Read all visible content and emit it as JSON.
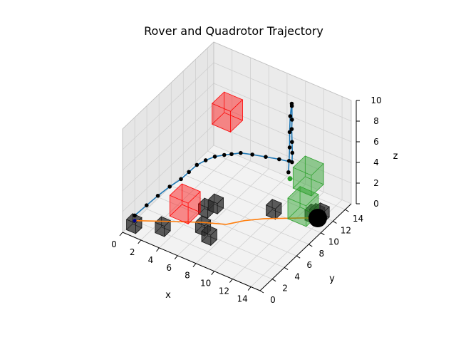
{
  "chart_data": {
    "type": "scatter3d",
    "title": "Rover and Quadrotor Trajectory",
    "xlabel": "x",
    "ylabel": "y",
    "zlabel": "z",
    "xlim": [
      0,
      15
    ],
    "ylim": [
      0,
      15
    ],
    "zlim": [
      0,
      10
    ],
    "xticks": [
      "0",
      "2",
      "4",
      "6",
      "8",
      "10",
      "12",
      "14"
    ],
    "yticks": [
      "0",
      "2",
      "4",
      "6",
      "8",
      "10",
      "12",
      "14"
    ],
    "zticks": [
      "0",
      "2",
      "4",
      "6",
      "8",
      "10"
    ],
    "grid": true,
    "colors": {
      "quadrotor_path": "#1f77b4",
      "rover_path": "#ff7f0e",
      "waypoint": "#000000",
      "goal": "#2ca02c",
      "obstacle_air": "#ff0000",
      "goal_region": "#2ca02c",
      "ground_obstacle": "#333333"
    },
    "quadrotor_trajectory": [
      [
        0,
        2,
        0.5
      ],
      [
        0.5,
        3.2,
        1.0
      ],
      [
        1.0,
        4.3,
        1.5
      ],
      [
        1.5,
        5.5,
        1.9
      ],
      [
        2.0,
        6.6,
        2.2
      ],
      [
        2.2,
        7.6,
        2.4
      ],
      [
        2.4,
        8.6,
        2.6
      ],
      [
        2.7,
        9.6,
        2.6
      ],
      [
        3.1,
        10.5,
        2.6
      ],
      [
        3.6,
        11.3,
        2.5
      ],
      [
        4.0,
        11.9,
        2.4
      ],
      [
        4.6,
        12.5,
        2.4
      ],
      [
        5.6,
        12.9,
        2.4
      ],
      [
        6.8,
        13.3,
        2.4
      ],
      [
        8.0,
        13.7,
        2.4
      ],
      [
        9.2,
        14.0,
        2.4
      ],
      [
        9.3,
        13.9,
        3.4
      ],
      [
        9.4,
        13.7,
        4.6
      ],
      [
        9.5,
        13.5,
        6.0
      ],
      [
        9.6,
        13.4,
        7.0
      ],
      [
        9.65,
        13.3,
        8.4
      ],
      [
        9.7,
        13.2,
        8.7
      ],
      [
        10.0,
        12.5,
        8.0
      ],
      [
        10.4,
        11.8,
        7.0
      ],
      [
        10.8,
        11.2,
        6.0
      ],
      [
        11.0,
        10.8,
        5.0
      ],
      [
        11.2,
        10.4,
        4.2
      ]
    ],
    "quadrotor_goal": [
      11.5,
      10.2,
      3.8
    ],
    "rover_trajectory": [
      [
        0,
        2,
        0
      ],
      [
        1.6,
        3.0,
        0
      ],
      [
        3.2,
        4.0,
        0
      ],
      [
        5.2,
        5.2,
        0
      ],
      [
        7.2,
        6.2,
        0
      ],
      [
        8.3,
        7.6,
        0
      ],
      [
        9.6,
        8.8,
        0
      ],
      [
        11.0,
        9.8,
        0
      ],
      [
        12.4,
        10.8,
        0
      ],
      [
        13.6,
        11.6,
        0
      ],
      [
        14.2,
        12.0,
        0
      ]
    ],
    "rover_goal": [
      13.6,
      11.6,
      0
    ],
    "air_obstacles": [
      {
        "center": [
          4.1,
          4.1,
          2.0
        ],
        "size": 2
      },
      {
        "center": [
          4.6,
          10.3,
          7.6
        ],
        "size": 2
      }
    ],
    "goal_regions": [
      {
        "center": [
          12.5,
          11.7,
          3.6
        ],
        "size": 2
      },
      {
        "center": [
          12.4,
          11.0,
          1.0
        ],
        "size": 2
      }
    ],
    "ground_obstacles": [
      {
        "center": [
          0.6,
          1.0,
          0.5
        ],
        "size": 1
      },
      {
        "center": [
          3.0,
          2.1,
          0.5
        ],
        "size": 1
      },
      {
        "center": [
          4.8,
          6.5,
          0.5
        ],
        "size": 1
      },
      {
        "center": [
          6.0,
          4.2,
          0.5
        ],
        "size": 1
      },
      {
        "center": [
          5.2,
          7.5,
          0.5
        ],
        "size": 1
      },
      {
        "center": [
          7.2,
          3.4,
          0.5
        ],
        "size": 1
      },
      {
        "center": [
          10.0,
          9.8,
          0.5
        ],
        "size": 1
      },
      {
        "center": [
          13.3,
          11.2,
          0.5
        ],
        "size": 1
      },
      {
        "center": [
          13.6,
          11.5,
          0.5
        ],
        "size": 1
      },
      {
        "center": [
          13.9,
          11.8,
          0.5
        ],
        "size": 1
      }
    ]
  }
}
